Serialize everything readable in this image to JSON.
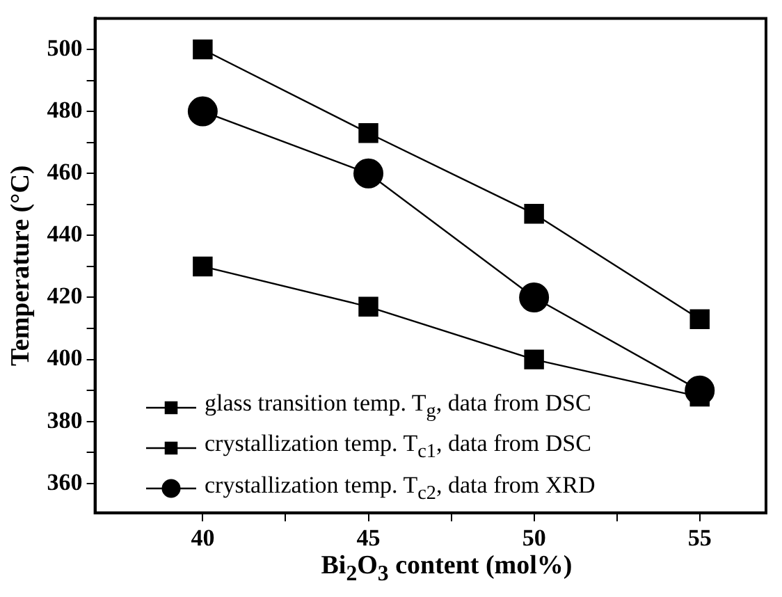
{
  "chart_data": {
    "type": "line",
    "xlabel": "Bi$_{2}$O$_{3}$ content (mol%)",
    "ylabel": "Temperature (°C)",
    "x": [
      40,
      45,
      50,
      55
    ],
    "series": [
      {
        "name": "glass transition temp. T$_{g}$, data from DSC",
        "color": "#000000",
        "marker": "square",
        "values": [
          430,
          417,
          400,
          388
        ]
      },
      {
        "name": "crystallization temp. T$_{c1}$, data from DSC",
        "color": "#000000",
        "marker": "square",
        "values": [
          500,
          473,
          447,
          413
        ]
      },
      {
        "name": "crystallization temp. T$_{c2}$, data from XRD",
        "color": "#000000",
        "marker": "circle",
        "values": [
          480,
          460,
          420,
          390
        ]
      }
    ],
    "xlim": [
      36.75,
      57
    ],
    "xticks": [
      40,
      {
        "value": 42.5,
        "label": null
      },
      45,
      {
        "value": 47.5,
        "label": null
      },
      50,
      {
        "value": 52.5,
        "label": null
      },
      55
    ],
    "ylim": [
      350.5,
      510
    ],
    "yticks": [
      360,
      {
        "value": 370,
        "label": null
      },
      380,
      {
        "value": 390,
        "label": null
      },
      400,
      {
        "value": 410,
        "label": null
      },
      420,
      {
        "value": 430,
        "label": null
      },
      440,
      {
        "value": 450,
        "label": null
      },
      460,
      {
        "value": 470,
        "label": null
      },
      480,
      {
        "value": 490,
        "label": null
      },
      500
    ],
    "grid": false,
    "legend": "bottom left"
  }
}
